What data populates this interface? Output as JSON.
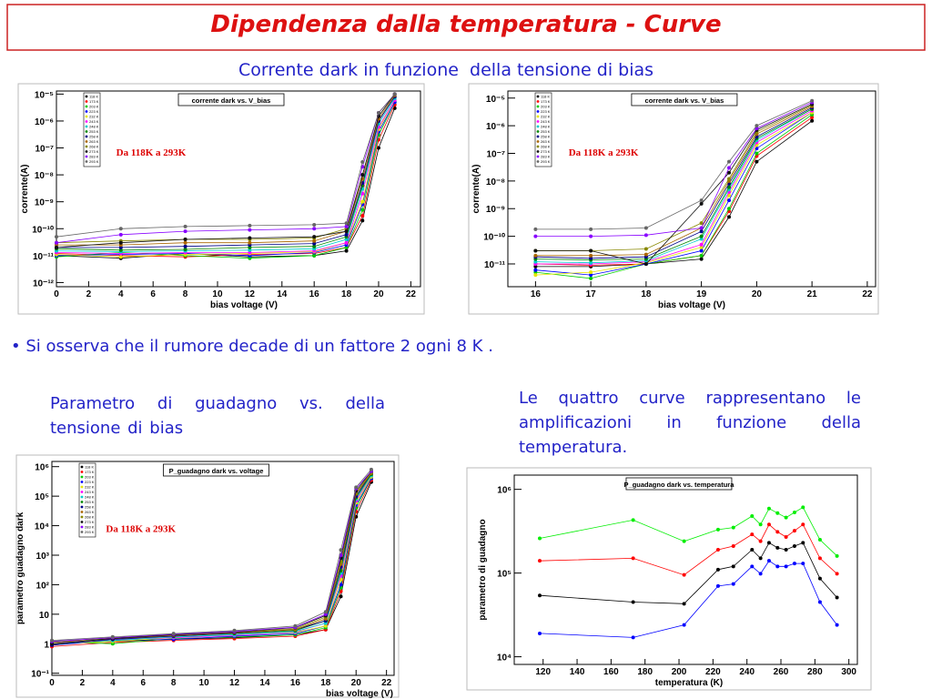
{
  "title": "Dipendenza dalla temperatura - Curve",
  "subtitle": "Corrente dark in funzione  della tensione di bias",
  "bullet": "• Si osserva che il rumore decade di un fattore 2 ogni 8 K .",
  "gain_caption": "Parametro di guadagno vs.  della tensione di bias",
  "amplification_caption": "Le quattro curve rappresentano le amplificazioni in funzione della temperatura.",
  "chart_data": [
    {
      "type": "line",
      "title": "corrente dark vs. V_bias",
      "xlabel": "bias voltage (V)",
      "ylabel": "corrente(A)",
      "annotation": "Da 118K a 293K",
      "log_y": true,
      "legend": "upper left",
      "xlim": [
        0,
        22.6
      ],
      "ylim": [
        7e-13,
        1.3e-05
      ],
      "xticks": [
        0,
        2,
        4,
        6,
        8,
        10,
        12,
        14,
        16,
        18,
        20,
        22
      ],
      "yticks": [
        {
          "value": 1e-12,
          "label": "10⁻¹²"
        },
        {
          "value": 1e-11,
          "label": "10⁻¹¹"
        },
        {
          "value": 1e-10,
          "label": "10⁻¹⁰"
        },
        {
          "value": 1e-09,
          "label": "10⁻⁹"
        },
        {
          "value": 1e-08,
          "label": "10⁻⁸"
        },
        {
          "value": 1e-07,
          "label": "10⁻⁷"
        },
        {
          "value": 1e-06,
          "label": "10⁻⁶"
        },
        {
          "value": 1e-05,
          "label": "10⁻⁵"
        }
      ],
      "x": [
        0,
        4,
        8,
        12,
        16,
        18,
        19,
        20,
        21
      ],
      "series": [
        {
          "name": "118 K",
          "color": "#000000",
          "values": [
            1e-11,
            8e-12,
            1.2e-11,
            9e-12,
            1e-11,
            1.5e-11,
            2e-10,
            1e-07,
            3e-06
          ]
        },
        {
          "name": "173 K",
          "color": "#ff0000",
          "values": [
            1.2e-11,
            1e-11,
            9e-12,
            1.1e-11,
            1.2e-11,
            2e-11,
            3e-10,
            2e-07,
            4e-06
          ]
        },
        {
          "name": "203 K",
          "color": "#00cc00",
          "values": [
            9e-12,
            1.3e-11,
            1e-11,
            8e-12,
            1e-11,
            2e-11,
            5e-10,
            3e-07,
            5e-06
          ]
        },
        {
          "name": "223 K",
          "color": "#0000ff",
          "values": [
            1e-11,
            1.1e-11,
            1.2e-11,
            1e-11,
            1.3e-11,
            2.5e-11,
            8e-10,
            4e-07,
            5e-06
          ]
        },
        {
          "name": "232 K",
          "color": "#e6e600",
          "values": [
            1.1e-11,
            9e-12,
            1.1e-11,
            1.2e-11,
            1.4e-11,
            3e-11,
            1e-09,
            5e-07,
            6e-06
          ]
        },
        {
          "name": "243 K",
          "color": "#ff00ff",
          "values": [
            1.3e-11,
            1.2e-11,
            1.3e-11,
            1.3e-11,
            1.5e-11,
            3e-11,
            2e-09,
            6e-07,
            6e-06
          ]
        },
        {
          "name": "248 K",
          "color": "#00cccc",
          "values": [
            1.5e-11,
            1.4e-11,
            1.5e-11,
            1.6e-11,
            1.8e-11,
            4e-11,
            3e-09,
            8e-07,
            7e-06
          ]
        },
        {
          "name": "253 K",
          "color": "#008800",
          "values": [
            1.8e-11,
            1.6e-11,
            1.7e-11,
            2e-11,
            2.2e-11,
            5e-11,
            4e-09,
            1e-06,
            8e-06
          ]
        },
        {
          "name": "258 K",
          "color": "#000088",
          "values": [
            2e-11,
            2e-11,
            2.2e-11,
            2.5e-11,
            2.8e-11,
            6e-11,
            5e-09,
            1e-06,
            8e-06
          ]
        },
        {
          "name": "263 K",
          "color": "#aa6600",
          "values": [
            2.5e-11,
            2.5e-11,
            3e-11,
            3e-11,
            3.5e-11,
            8e-11,
            7e-09,
            1.2e-06,
            9e-06
          ]
        },
        {
          "name": "268 K",
          "color": "#888800",
          "values": [
            3e-11,
            3.5e-11,
            4e-11,
            4e-11,
            4.5e-11,
            1e-10,
            1e-08,
            1.5e-06,
            1e-05
          ]
        },
        {
          "name": "273 K",
          "color": "#111111",
          "values": [
            2e-11,
            3e-11,
            4e-11,
            4.5e-11,
            5e-11,
            8e-11,
            1e-08,
            1.5e-06,
            1e-05
          ]
        },
        {
          "name": "283 K",
          "color": "#8800ff",
          "values": [
            3e-11,
            6e-11,
            8e-11,
            9e-11,
            1e-10,
            1.2e-10,
            2e-08,
            2e-06,
            1e-05
          ]
        },
        {
          "name": "293 K",
          "color": "#666666",
          "values": [
            5e-11,
            1e-10,
            1.2e-10,
            1.3e-10,
            1.4e-10,
            1.6e-10,
            3e-08,
            2e-06,
            1e-05
          ]
        }
      ]
    },
    {
      "type": "line",
      "title": "corrente dark vs. V_bias",
      "xlabel": "bias voltage (V)",
      "ylabel": "corrente(A)",
      "annotation": "Da 118K a 293K",
      "log_y": true,
      "legend": "upper left",
      "xlim": [
        15.5,
        22.15
      ],
      "ylim": [
        1.5e-12,
        1.8e-05
      ],
      "xticks": [
        16,
        17,
        18,
        19,
        20,
        21,
        22
      ],
      "yticks": [
        {
          "value": 1e-11,
          "label": "10⁻¹¹"
        },
        {
          "value": 1e-10,
          "label": "10⁻¹⁰"
        },
        {
          "value": 1e-09,
          "label": "10⁻⁹"
        },
        {
          "value": 1e-08,
          "label": "10⁻⁸"
        },
        {
          "value": 1e-07,
          "label": "10⁻⁷"
        },
        {
          "value": 1e-06,
          "label": "10⁻⁶"
        },
        {
          "value": 1e-05,
          "label": "10⁻⁵"
        }
      ],
      "x": [
        16,
        17,
        18,
        19,
        19.5,
        20,
        21
      ],
      "series": [
        {
          "name": "118 K",
          "color": "#000000",
          "values": [
            8e-12,
            8e-12,
            1e-11,
            1.5e-11,
            5e-10,
            5e-08,
            1.5e-06
          ]
        },
        {
          "name": "173 K",
          "color": "#ff0000",
          "values": [
            1e-11,
            9e-12,
            1e-11,
            2e-11,
            8e-10,
            8e-08,
            2e-06
          ]
        },
        {
          "name": "203 K",
          "color": "#00cc00",
          "values": [
            5e-12,
            3e-12,
            1e-11,
            2e-11,
            1e-09,
            1e-07,
            2.5e-06
          ]
        },
        {
          "name": "223 K",
          "color": "#0000ff",
          "values": [
            6e-12,
            4e-12,
            1e-11,
            3e-11,
            2e-09,
            1.5e-07,
            3e-06
          ]
        },
        {
          "name": "232 K",
          "color": "#e6e600",
          "values": [
            4e-12,
            5e-12,
            1.1e-11,
            4e-11,
            3e-09,
            2e-07,
            3e-06
          ]
        },
        {
          "name": "243 K",
          "color": "#ff00ff",
          "values": [
            1e-11,
            1e-11,
            1.2e-11,
            5e-11,
            4e-09,
            2.5e-07,
            3.5e-06
          ]
        },
        {
          "name": "248 K",
          "color": "#00cccc",
          "values": [
            1.2e-11,
            1.1e-11,
            1.3e-11,
            8e-11,
            5e-09,
            3e-07,
            4e-06
          ]
        },
        {
          "name": "253 K",
          "color": "#008800",
          "values": [
            1.5e-11,
            1.4e-11,
            1.5e-11,
            1e-10,
            6e-09,
            3.5e-07,
            4e-06
          ]
        },
        {
          "name": "258 K",
          "color": "#000088",
          "values": [
            1.8e-11,
            1.6e-11,
            1.8e-11,
            1.5e-10,
            8e-09,
            4e-07,
            4.5e-06
          ]
        },
        {
          "name": "263 K",
          "color": "#aa6600",
          "values": [
            2e-11,
            2e-11,
            2.2e-11,
            2e-10,
            1e-08,
            5e-07,
            5e-06
          ]
        },
        {
          "name": "268 K",
          "color": "#888800",
          "values": [
            3e-11,
            3e-11,
            3.5e-11,
            3e-10,
            1.2e-08,
            6e-07,
            5.5e-06
          ]
        },
        {
          "name": "273 K",
          "color": "#111111",
          "values": [
            3e-11,
            3e-11,
            1e-11,
            1.5e-09,
            2e-08,
            7e-07,
            6e-06
          ]
        },
        {
          "name": "283 K",
          "color": "#8800ff",
          "values": [
            1e-10,
            1e-10,
            1.1e-10,
            2e-10,
            3e-08,
            8e-07,
            7e-06
          ]
        },
        {
          "name": "293 K",
          "color": "#666666",
          "values": [
            1.8e-10,
            1.8e-10,
            2e-10,
            2e-09,
            5e-08,
            1e-06,
            8e-06
          ]
        }
      ]
    },
    {
      "type": "line",
      "title": "P_guadagno dark vs. voltage",
      "xlabel": "bias voltage (V)",
      "ylabel": "parametro guadagno dark",
      "annotation": "Da 118K a 293K",
      "log_y": true,
      "legend": "upper left",
      "xlim": [
        0,
        22.5
      ],
      "ylim": [
        0.085,
        1500000.0
      ],
      "xticks": [
        0,
        2,
        4,
        6,
        8,
        10,
        12,
        14,
        16,
        18,
        20,
        22
      ],
      "yticks": [
        {
          "value": 0.1,
          "label": "10⁻¹"
        },
        1,
        10,
        {
          "value": 100,
          "label": "10²"
        },
        {
          "value": 1000,
          "label": "10³"
        },
        {
          "value": 10000,
          "label": "10⁴"
        },
        {
          "value": 100000,
          "label": "10⁵"
        },
        {
          "value": 1000000,
          "label": "10⁶"
        }
      ],
      "x": [
        0,
        4,
        8,
        12,
        16,
        18,
        19,
        20,
        21
      ],
      "series": [
        {
          "name": "118 K",
          "color": "#000000",
          "values": [
            1,
            1.2,
            1.4,
            1.6,
            2,
            3,
            40,
            20000,
            300000
          ]
        },
        {
          "name": "173 K",
          "color": "#ff0000",
          "values": [
            0.8,
            1.1,
            1.3,
            1.5,
            1.8,
            3,
            60,
            30000,
            350000
          ]
        },
        {
          "name": "203 K",
          "color": "#00cc00",
          "values": [
            1.2,
            1,
            1.5,
            1.7,
            2,
            3.5,
            80,
            40000,
            400000
          ]
        },
        {
          "name": "223 K",
          "color": "#0000ff",
          "values": [
            0.9,
            1.3,
            1.4,
            1.8,
            2.2,
            4,
            100,
            50000,
            400000
          ]
        },
        {
          "name": "232 K",
          "color": "#e6e600",
          "values": [
            1,
            1.2,
            1.6,
            2,
            2.4,
            4,
            150,
            60000,
            450000
          ]
        },
        {
          "name": "243 K",
          "color": "#ff00ff",
          "values": [
            1.1,
            1.4,
            1.6,
            1.9,
            2.5,
            5,
            200,
            70000,
            500000
          ]
        },
        {
          "name": "248 K",
          "color": "#00cccc",
          "values": [
            1,
            1.3,
            1.7,
            2,
            2.6,
            5,
            250,
            80000,
            500000
          ]
        },
        {
          "name": "253 K",
          "color": "#008800",
          "values": [
            1.2,
            1.5,
            1.8,
            2.2,
            2.8,
            6,
            300,
            90000,
            550000
          ]
        },
        {
          "name": "258 K",
          "color": "#000088",
          "values": [
            0.9,
            1.4,
            1.8,
            2.3,
            3,
            6,
            400,
            100000,
            600000
          ]
        },
        {
          "name": "263 K",
          "color": "#aa6600",
          "values": [
            1,
            1.5,
            1.9,
            2.4,
            3,
            7,
            500,
            120000,
            600000
          ]
        },
        {
          "name": "268 K",
          "color": "#888800",
          "values": [
            1.1,
            1.6,
            2,
            2.5,
            3.2,
            8,
            600,
            130000,
            650000
          ]
        },
        {
          "name": "273 K",
          "color": "#111111",
          "values": [
            1,
            1.5,
            2,
            2.5,
            3.5,
            9,
            800,
            150000,
            700000
          ]
        },
        {
          "name": "283 K",
          "color": "#8800ff",
          "values": [
            1.2,
            1.6,
            2.1,
            2.6,
            3.6,
            10,
            1000,
            180000,
            700000
          ]
        },
        {
          "name": "293 K",
          "color": "#666666",
          "values": [
            1.3,
            1.7,
            2.2,
            2.8,
            4,
            12,
            1500,
            200000,
            800000
          ]
        }
      ]
    },
    {
      "type": "line",
      "title": "P_guadagno dark vs. temperatura",
      "xlabel": "temperatura (K)",
      "ylabel": "parametro di guadagno",
      "log_y": true,
      "xlim": [
        103,
        305
      ],
      "ylim": [
        8100,
        1480000
      ],
      "xticks": [
        120,
        140,
        160,
        180,
        200,
        220,
        240,
        260,
        280,
        300
      ],
      "yticks": [
        {
          "value": 10000,
          "label": "10⁴"
        },
        {
          "value": 100000,
          "label": "10⁵"
        },
        {
          "value": 1000000,
          "label": "10⁶"
        }
      ],
      "x": [
        118,
        173,
        203,
        223,
        232,
        243,
        248,
        253,
        258,
        263,
        268,
        273,
        283,
        293
      ],
      "series": [
        {
          "color": "#00ee00",
          "values": [
            260000,
            430000,
            240000,
            330000,
            350000,
            480000,
            380000,
            590000,
            520000,
            460000,
            530000,
            610000,
            250000,
            160000
          ]
        },
        {
          "color": "#ff0000",
          "values": [
            140000,
            150000,
            95000,
            190000,
            210000,
            290000,
            240000,
            380000,
            310000,
            270000,
            320000,
            380000,
            150000,
            98000
          ]
        },
        {
          "color": "#000000",
          "values": [
            54000,
            45000,
            43000,
            110000,
            120000,
            190000,
            150000,
            230000,
            200000,
            190000,
            210000,
            230000,
            86000,
            51000
          ]
        },
        {
          "color": "#0000ff",
          "values": [
            19000,
            17000,
            24000,
            70000,
            74000,
            120000,
            98000,
            140000,
            120000,
            120000,
            130000,
            130000,
            45000,
            24000
          ]
        }
      ]
    }
  ]
}
